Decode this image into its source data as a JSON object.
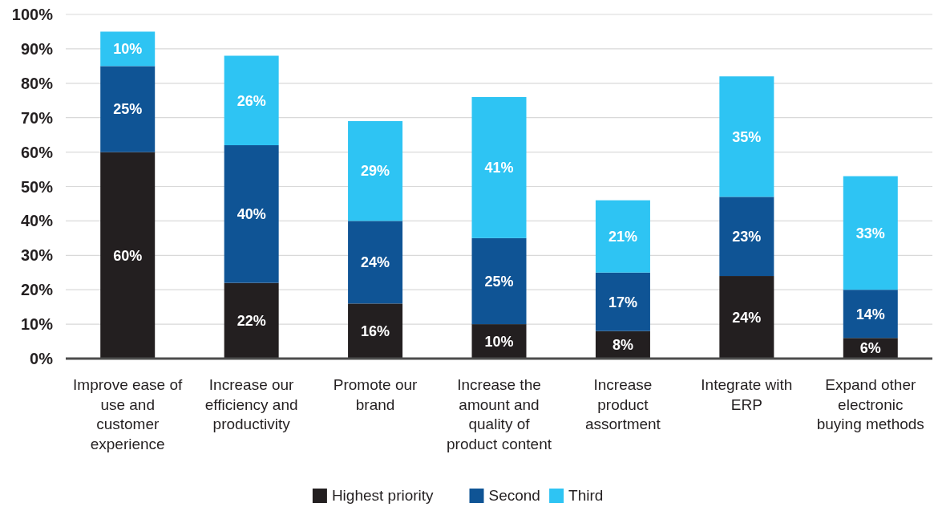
{
  "chart_data": {
    "type": "bar",
    "stacked": true,
    "categories": [
      "Improve ease of use and customer experience",
      "Increase our efficiency and productivity",
      "Promote our brand",
      "Increase the amount and quality of product content",
      "Increase product assortment",
      "Integrate with ERP",
      "Expand other electronic buying methods"
    ],
    "series": [
      {
        "name": "Highest priority",
        "color": "#231f20",
        "values": [
          60,
          22,
          16,
          10,
          8,
          24,
          6
        ],
        "value_labels": [
          "60%",
          "22%",
          "16%",
          "10%",
          "8%",
          "24%",
          "6%"
        ]
      },
      {
        "name": "Second",
        "color": "#0f5495",
        "values": [
          25,
          40,
          24,
          25,
          17,
          23,
          14
        ],
        "value_labels": [
          "25%",
          "40%",
          "24%",
          "25%",
          "17%",
          "23%",
          "14%"
        ]
      },
      {
        "name": "Third",
        "color": "#2ec4f3",
        "values": [
          10,
          26,
          29,
          41,
          21,
          35,
          33
        ],
        "value_labels": [
          "10%",
          "26%",
          "29%",
          "41%",
          "21%",
          "35%",
          "33%"
        ]
      }
    ],
    "ylim": [
      0,
      100
    ],
    "yticks": [
      {
        "value": 0,
        "label": "0%"
      },
      {
        "value": 10,
        "label": "10%"
      },
      {
        "value": 20,
        "label": "20%"
      },
      {
        "value": 30,
        "label": "30%"
      },
      {
        "value": 40,
        "label": "40%"
      },
      {
        "value": 50,
        "label": "50%"
      },
      {
        "value": 60,
        "label": "60%"
      },
      {
        "value": 70,
        "label": "70%"
      },
      {
        "value": 80,
        "label": "80%"
      },
      {
        "value": 90,
        "label": "90%"
      },
      {
        "value": 100,
        "label": "100%"
      }
    ],
    "grid": "y",
    "legend": "bottom"
  }
}
